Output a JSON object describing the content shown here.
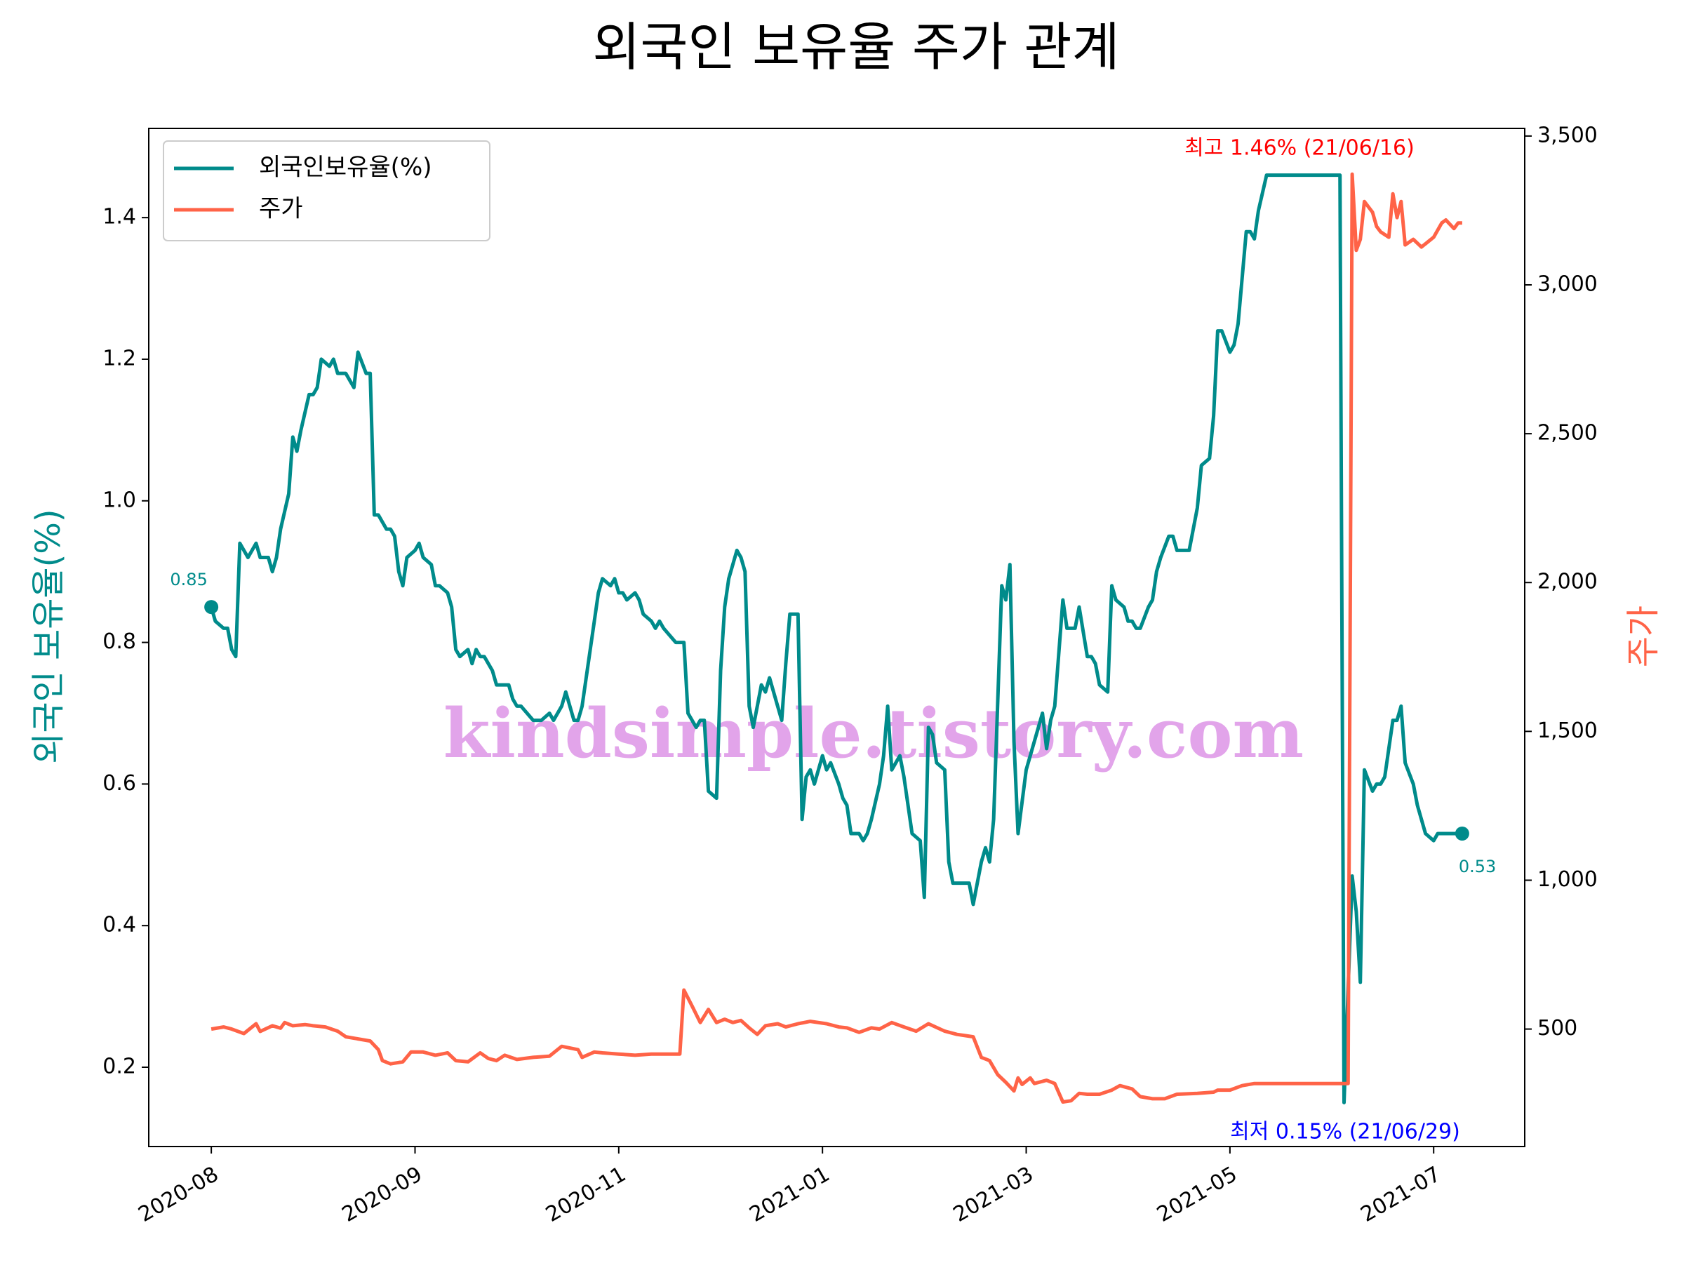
{
  "chart_data": {
    "type": "line",
    "title": "외국인 보유율 주가 관계",
    "ylabel": "외국인 보유율(%)",
    "y2label": "주가",
    "watermark": "kindsimple.tistory.com",
    "legend": "upper left",
    "xlim": [
      -15.35,
      322.35
    ],
    "xticks": [
      {
        "value": 0,
        "label": "2020-08"
      },
      {
        "value": 50,
        "label": "2020-09"
      },
      {
        "value": 100,
        "label": "2020-11"
      },
      {
        "value": 150,
        "label": "2021-01"
      },
      {
        "value": 200,
        "label": "2021-03"
      },
      {
        "value": 250,
        "label": "2021-05"
      },
      {
        "value": 300,
        "label": "2021-07"
      }
    ],
    "ylim": [
      0.088,
      1.526
    ],
    "yticks": [
      0.2,
      0.4,
      0.6,
      0.8,
      {
        "value": 1,
        "label": "1.0"
      },
      1.2,
      1.4
    ],
    "y2lim": [
      105.4,
      3525.6
    ],
    "y2ticks": [
      500,
      {
        "value": 1000,
        "label": "1,000"
      },
      {
        "value": 1500,
        "label": "1,500"
      },
      {
        "value": 2000,
        "label": "2,000"
      },
      {
        "value": 2500,
        "label": "2,500"
      },
      {
        "value": 3000,
        "label": "3,000"
      },
      {
        "value": 3500,
        "label": "3,500"
      }
    ],
    "series": [
      {
        "name": "외국인보유율(%)",
        "color": "#008b8b",
        "axis": "y",
        "x": [
          0,
          1,
          3,
          4,
          5,
          6,
          7,
          9,
          11,
          12,
          14,
          15,
          16,
          17,
          19,
          20,
          21,
          22,
          24,
          25,
          26,
          27,
          29,
          30,
          31,
          33,
          34,
          35,
          36,
          38,
          39,
          40,
          41,
          43,
          44,
          45,
          46,
          47,
          48,
          50,
          51,
          52,
          54,
          55,
          56,
          58,
          59,
          60,
          61,
          63,
          64,
          65,
          66,
          67,
          69,
          70,
          73,
          74,
          75,
          76,
          79,
          81,
          83,
          84,
          85,
          86,
          87,
          89,
          90,
          91,
          93,
          94,
          95,
          96,
          98,
          99,
          100,
          101,
          102,
          104,
          105,
          106,
          108,
          109,
          110,
          111,
          114,
          116,
          117,
          119,
          120,
          121,
          122,
          124,
          125,
          126,
          127,
          129,
          130,
          131,
          132,
          133,
          135,
          136,
          137,
          139,
          140,
          141,
          142,
          144,
          145,
          146,
          147,
          148,
          150,
          151,
          152,
          154,
          155,
          156,
          157,
          159,
          160,
          161,
          162,
          164,
          165,
          166,
          167,
          169,
          170,
          171,
          172,
          174,
          175,
          176,
          177,
          178,
          180,
          181,
          182,
          185,
          186,
          187,
          189,
          190,
          191,
          192,
          194,
          195,
          196,
          197,
          198,
          200,
          201,
          202,
          204,
          205,
          206,
          207,
          209,
          210,
          212,
          213,
          215,
          216,
          217,
          218,
          220,
          221,
          222,
          224,
          225,
          226,
          227,
          228,
          230,
          231,
          232,
          233,
          235,
          236,
          237,
          240,
          241,
          242,
          243,
          245,
          246,
          247,
          248,
          250,
          251,
          252,
          254,
          255,
          256,
          257,
          259,
          277,
          278,
          280,
          281,
          282,
          283,
          285,
          286,
          287,
          288,
          290,
          291,
          292,
          293,
          295,
          296,
          297,
          298,
          300,
          301,
          307
        ],
        "values": [
          0.85,
          0.83,
          0.82,
          0.82,
          0.79,
          0.78,
          0.94,
          0.92,
          0.94,
          0.92,
          0.92,
          0.9,
          0.92,
          0.96,
          1.01,
          1.09,
          1.07,
          1.1,
          1.15,
          1.15,
          1.16,
          1.2,
          1.19,
          1.2,
          1.18,
          1.18,
          1.17,
          1.16,
          1.21,
          1.18,
          1.18,
          0.98,
          0.98,
          0.96,
          0.96,
          0.95,
          0.9,
          0.88,
          0.92,
          0.93,
          0.94,
          0.92,
          0.91,
          0.88,
          0.88,
          0.87,
          0.85,
          0.79,
          0.78,
          0.79,
          0.77,
          0.79,
          0.78,
          0.78,
          0.76,
          0.74,
          0.74,
          0.72,
          0.71,
          0.71,
          0.69,
          0.69,
          0.7,
          0.69,
          0.7,
          0.71,
          0.73,
          0.69,
          0.69,
          0.71,
          0.79,
          0.83,
          0.87,
          0.89,
          0.88,
          0.89,
          0.87,
          0.87,
          0.86,
          0.87,
          0.86,
          0.84,
          0.83,
          0.82,
          0.83,
          0.82,
          0.8,
          0.8,
          0.7,
          0.68,
          0.69,
          0.69,
          0.59,
          0.58,
          0.76,
          0.85,
          0.89,
          0.93,
          0.92,
          0.9,
          0.71,
          0.68,
          0.74,
          0.73,
          0.75,
          0.71,
          0.69,
          0.77,
          0.84,
          0.84,
          0.55,
          0.61,
          0.62,
          0.6,
          0.64,
          0.62,
          0.63,
          0.6,
          0.58,
          0.57,
          0.53,
          0.53,
          0.52,
          0.53,
          0.55,
          0.6,
          0.64,
          0.71,
          0.62,
          0.64,
          0.61,
          0.57,
          0.53,
          0.52,
          0.44,
          0.68,
          0.67,
          0.63,
          0.62,
          0.49,
          0.46,
          0.46,
          0.46,
          0.43,
          0.49,
          0.51,
          0.49,
          0.55,
          0.88,
          0.86,
          0.91,
          0.66,
          0.53,
          0.62,
          0.64,
          0.66,
          0.7,
          0.65,
          0.69,
          0.71,
          0.86,
          0.82,
          0.82,
          0.85,
          0.78,
          0.78,
          0.77,
          0.74,
          0.73,
          0.88,
          0.86,
          0.85,
          0.83,
          0.83,
          0.82,
          0.82,
          0.85,
          0.86,
          0.9,
          0.92,
          0.95,
          0.95,
          0.93,
          0.93,
          0.96,
          0.99,
          1.05,
          1.06,
          1.12,
          1.24,
          1.24,
          1.21,
          1.22,
          1.25,
          1.38,
          1.38,
          1.37,
          1.41,
          1.46,
          1.46,
          0.15,
          0.47,
          0.42,
          0.32,
          0.62,
          0.59,
          0.6,
          0.6,
          0.61,
          0.69,
          0.69,
          0.71,
          0.63,
          0.6,
          0.57,
          0.55,
          0.53,
          0.52,
          0.53,
          0.53
        ]
      },
      {
        "name": "주가",
        "color": "#ff6347",
        "axis": "y2",
        "x": [
          0,
          3,
          5,
          8,
          11,
          12,
          15,
          17,
          18,
          20,
          23,
          25,
          28,
          31,
          33,
          36,
          39,
          41,
          42,
          44,
          47,
          49,
          52,
          55,
          58,
          60,
          63,
          66,
          68,
          70,
          72,
          75,
          79,
          83,
          86,
          90,
          91,
          94,
          96,
          100,
          104,
          108,
          112,
          115,
          116,
          118,
          120,
          122,
          124,
          126,
          128,
          130,
          132,
          134,
          136,
          139,
          141,
          144,
          147,
          151,
          154,
          156,
          159,
          162,
          164,
          167,
          170,
          173,
          176,
          180,
          183,
          185,
          187,
          189,
          191,
          193,
          195,
          197,
          198,
          199,
          201,
          202,
          205,
          207,
          209,
          211,
          213,
          215,
          218,
          221,
          223,
          226,
          228,
          231,
          234,
          237,
          242,
          246,
          247,
          250,
          253,
          256,
          259,
          279,
          280,
          281,
          282,
          283,
          285,
          286,
          287,
          289,
          290,
          291,
          292,
          293,
          295,
          297,
          300,
          302,
          303,
          305,
          306,
          307
        ],
        "values": [
          500,
          507,
          500,
          485,
          518,
          492,
          511,
          503,
          522,
          511,
          515,
          511,
          507,
          493,
          474,
          467,
          460,
          431,
          394,
          383,
          390,
          423,
          423,
          412,
          420,
          394,
          390,
          420,
          401,
          394,
          412,
          398,
          405,
          409,
          442,
          431,
          405,
          423,
          420,
          416,
          412,
          416,
          416,
          416,
          631,
          577,
          522,
          566,
          522,
          533,
          522,
          529,
          504,
          482,
          511,
          518,
          507,
          518,
          526,
          518,
          507,
          504,
          489,
          504,
          500,
          522,
          507,
          493,
          518,
          493,
          482,
          478,
          474,
          405,
          394,
          347,
          321,
          292,
          336,
          314,
          336,
          317,
          328,
          317,
          255,
          259,
          284,
          281,
          281,
          295,
          310,
          299,
          273,
          266,
          266,
          281,
          284,
          288,
          295,
          295,
          310,
          317,
          317,
          317,
          3372,
          3116,
          3153,
          3280,
          3244,
          3196,
          3178,
          3160,
          3306,
          3226,
          3280,
          3134,
          3153,
          3127,
          3160,
          3208,
          3218,
          3189,
          3208,
          3208
        ]
      }
    ],
    "point_labels": [
      {
        "x": 0,
        "value": 0.85
      },
      {
        "x": 307,
        "value": 0.53
      }
    ],
    "annotations": [
      {
        "text": "최고 1.46% (21/06/16)",
        "color": "#ff0000"
      },
      {
        "text": "최저 0.15% (21/06/29)",
        "color": "#0000ff"
      }
    ]
  }
}
